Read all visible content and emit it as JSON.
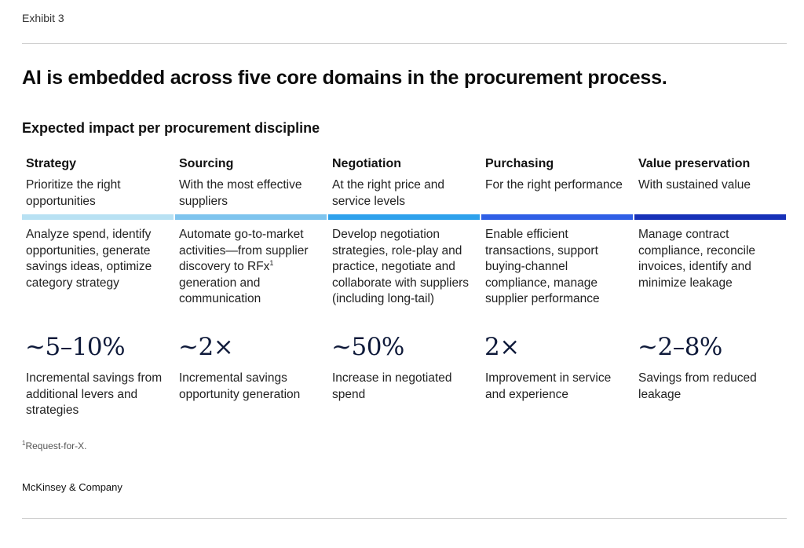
{
  "exhibit_label": "Exhibit 3",
  "headline": "AI is embedded across five core domains in the procurement process.",
  "subhead": "Expected impact per procurement discipline",
  "columns": [
    {
      "title": "Strategy",
      "tagline": "Prioritize the right opportunities",
      "bar_color": "#b8e1f3",
      "description": "Analyze spend, identify opportunities, generate savings ideas, optimize category strategy",
      "stat": "~5–10%",
      "stat_description": "Incremental savings from additional levers and strategies"
    },
    {
      "title": "Sourcing",
      "tagline": "With the most effective suppliers",
      "bar_color": "#7ec4ee",
      "description": "Automate go-to-market activities—from supplier discovery to RFx",
      "description_footnote_mark": "1",
      "description_continued": " generation and communication",
      "stat": "~2×",
      "stat_description": "Incremental savings opportunity generation"
    },
    {
      "title": "Negotiation",
      "tagline": "At the right price and service levels",
      "bar_color": "#2ea1ec",
      "description": "Develop negotiation strategies, role-play and practice, negotiate and collaborate with suppliers (including long-tail)",
      "stat": "~50%",
      "stat_description": "Increase in negotiated spend"
    },
    {
      "title": "Purchasing",
      "tagline": "For the right performance",
      "bar_color": "#2f5fe6",
      "description": "Enable efficient transactions, support buying-channel compliance, manage supplier performance",
      "stat": "2×",
      "stat_description": "Improvement in service and experience"
    },
    {
      "title": "Value preservation",
      "tagline": "With sustained value",
      "bar_color": "#1731b8",
      "description": "Manage contract compliance, reconcile invoices, identify and minimize leakage",
      "stat": "~2–8%",
      "stat_description": "Savings from reduced leakage"
    }
  ],
  "footnote": {
    "mark": "1",
    "text": "Request-for-X."
  },
  "source": "McKinsey & Company"
}
